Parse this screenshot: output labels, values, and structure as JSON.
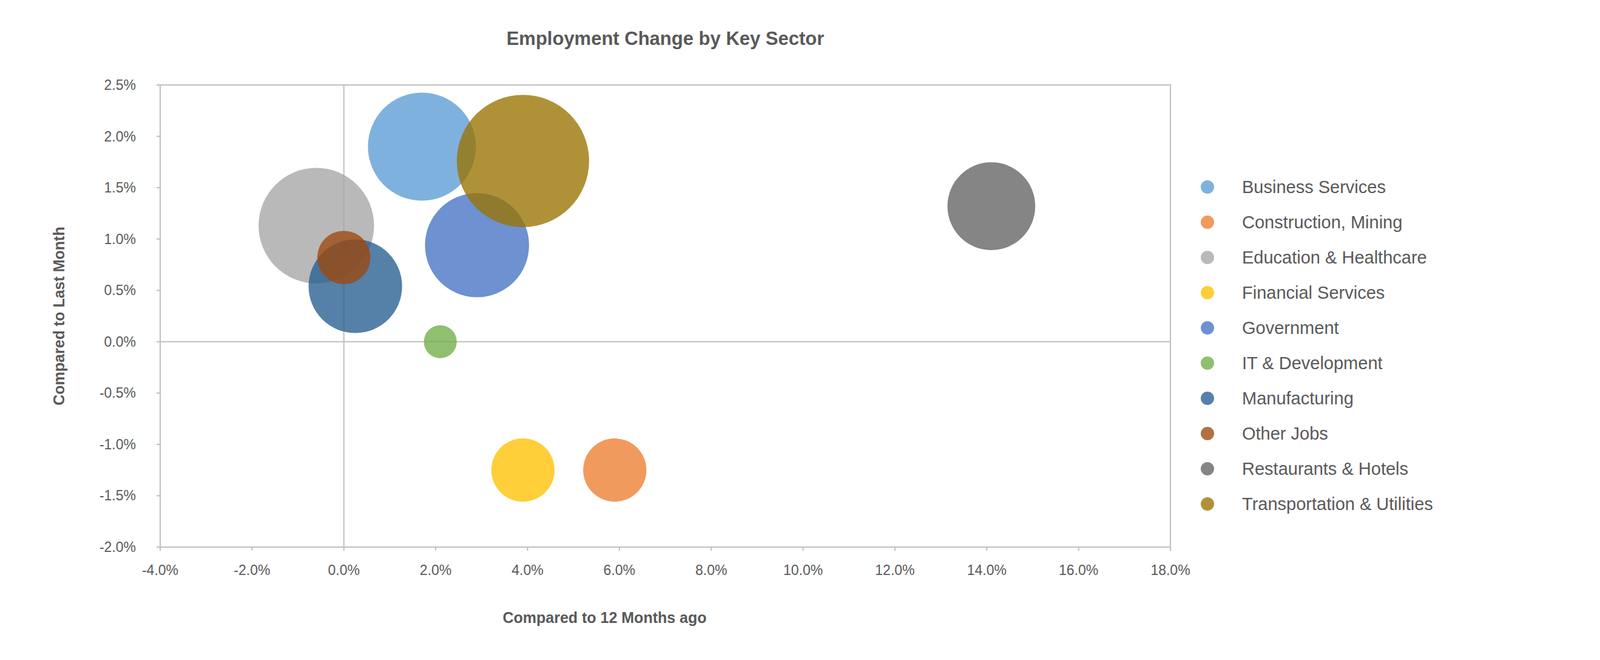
{
  "chart_data": {
    "type": "bubble",
    "title": "Employment Change by Key Sector",
    "x_label": "Compared to 12 Months ago",
    "y_label": "Compared to Last Month",
    "xlim": [
      -4,
      18
    ],
    "ylim": [
      -2,
      2.5
    ],
    "xticks": [
      {
        "value": -4,
        "label": "-4.0%"
      },
      {
        "value": -2,
        "label": "-2.0%"
      },
      {
        "value": 0,
        "label": "0.0%"
      },
      {
        "value": 2,
        "label": "2.0%"
      },
      {
        "value": 4,
        "label": "4.0%"
      },
      {
        "value": 6,
        "label": "6.0%"
      },
      {
        "value": 8,
        "label": "8.0%"
      },
      {
        "value": 10,
        "label": "10.0%"
      },
      {
        "value": 12,
        "label": "12.0%"
      },
      {
        "value": 14,
        "label": "14.0%"
      },
      {
        "value": 16,
        "label": "16.0%"
      },
      {
        "value": 18,
        "label": "18.0%"
      }
    ],
    "yticks": [
      {
        "value": -2,
        "label": "-2.0%"
      },
      {
        "value": -1.5,
        "label": "-1.5%"
      },
      {
        "value": -1,
        "label": "-1.0%"
      },
      {
        "value": -0.5,
        "label": "-0.5%"
      },
      {
        "value": 0,
        "label": "0.0%"
      },
      {
        "value": 0.5,
        "label": "0.5%"
      },
      {
        "value": 1,
        "label": "1.0%"
      },
      {
        "value": 1.5,
        "label": "1.5%"
      },
      {
        "value": 2,
        "label": "2.0%"
      },
      {
        "value": 2.5,
        "label": "2.5%"
      }
    ],
    "grid": false,
    "legend": "right",
    "series": [
      {
        "name": "Business Services",
        "color": "#5b9bd5",
        "x": [
          1.7
        ],
        "values": [
          1.9
        ],
        "sizes": [
          28
        ]
      },
      {
        "name": "Construction, Mining",
        "color": "#ed7d31",
        "x": [
          5.9
        ],
        "values": [
          -1.25
        ],
        "sizes": [
          9.6
        ]
      },
      {
        "name": "Education & Healthcare",
        "color": "#a5a5a5",
        "x": [
          -0.6
        ],
        "values": [
          1.13
        ],
        "sizes": [
          32
        ]
      },
      {
        "name": "Financial Services",
        "color": "#ffc000",
        "x": [
          3.9
        ],
        "values": [
          -1.25
        ],
        "sizes": [
          9.6
        ]
      },
      {
        "name": "Government",
        "color": "#4472c4",
        "x": [
          2.9
        ],
        "values": [
          0.94
        ],
        "sizes": [
          26
        ]
      },
      {
        "name": "IT & Development",
        "color": "#70ad47",
        "x": [
          2.1
        ],
        "values": [
          0.0
        ],
        "sizes": [
          2.6
        ]
      },
      {
        "name": "Manufacturing",
        "color": "#255e91",
        "x": [
          0.25
        ],
        "values": [
          0.54
        ],
        "sizes": [
          21
        ]
      },
      {
        "name": "Other Jobs",
        "color": "#9e480e",
        "x": [
          0.0
        ],
        "values": [
          0.82
        ],
        "sizes": [
          6.8
        ]
      },
      {
        "name": "Restaurants & Hotels",
        "color": "#636363",
        "x": [
          14.1
        ],
        "values": [
          1.32
        ],
        "sizes": [
          18.5
        ]
      },
      {
        "name": "Transportation & Utilities",
        "color": "#997300",
        "x": [
          3.9
        ],
        "values": [
          1.76
        ],
        "sizes": [
          42
        ]
      }
    ]
  }
}
